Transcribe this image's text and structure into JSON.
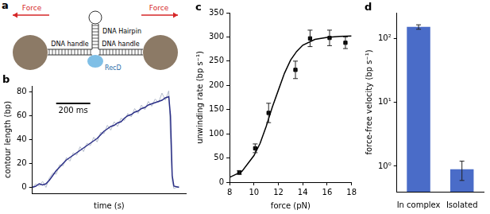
{
  "diagram": {
    "title": "a",
    "force_left": "Force",
    "force_right": "Force",
    "hairpin": "DNA Hairpin",
    "handle_left": "DNA handle",
    "handle_right": "DNA handle",
    "protein": "RecD"
  },
  "chart_data": [
    {
      "title": "b",
      "type": "line",
      "x_label": "time (s)",
      "y_label": "contour length (bp)",
      "x": [
        0,
        0.02,
        0.04,
        0.06,
        0.08,
        0.1,
        0.12,
        0.14,
        0.16,
        0.18,
        0.2,
        0.22,
        0.24,
        0.26,
        0.28,
        0.3,
        0.32,
        0.34,
        0.36,
        0.38,
        0.4,
        0.42,
        0.44,
        0.46,
        0.48,
        0.5,
        0.52,
        0.54,
        0.56,
        0.58,
        0.6,
        0.62,
        0.64,
        0.66,
        0.68,
        0.7,
        0.72,
        0.74,
        0.76,
        0.78,
        0.8,
        0.81,
        0.82,
        0.83,
        0.86
      ],
      "series": [
        {
          "color": "#b4bccb",
          "values": [
            0,
            3,
            1,
            5,
            0,
            8,
            12,
            11,
            19,
            18,
            25,
            22,
            29,
            27,
            34,
            30,
            37,
            35,
            42,
            38,
            46,
            45,
            52,
            48,
            55,
            51,
            58,
            56,
            62,
            59,
            66,
            62,
            69,
            65,
            72,
            68,
            74,
            71,
            79,
            73,
            81,
            40,
            5,
            -1,
            1
          ]
        },
        {
          "color": "#2a2e86",
          "values": [
            0,
            1,
            3,
            2,
            3,
            6,
            10,
            14,
            17,
            20,
            23,
            25,
            27,
            29,
            31,
            33,
            35,
            37,
            39,
            41,
            44,
            47,
            49,
            51,
            52,
            54,
            55,
            58,
            60,
            61,
            63,
            64,
            66,
            67,
            69,
            70,
            71,
            72,
            73,
            75,
            76,
            60,
            10,
            1,
            0
          ]
        }
      ],
      "xlim": [
        0,
        0.9
      ],
      "ylim": [
        -5,
        85
      ],
      "yticks": [
        0,
        20,
        40,
        60,
        80
      ],
      "tick_labels": "y",
      "grid": false,
      "scale_bar": {
        "value": 0.2,
        "label": "200 ms"
      }
    },
    {
      "title": "c",
      "type": "scatter",
      "x_label": "force (pN)",
      "y_label": "unwinding rate (bp s⁻¹)",
      "xlim": [
        8,
        18
      ],
      "xticks": [
        8,
        10,
        12,
        14,
        16,
        18
      ],
      "ylim": [
        0,
        350
      ],
      "yticks": [
        0,
        50,
        100,
        150,
        200,
        250,
        300,
        350
      ],
      "grid": false,
      "series": [
        {
          "type": "scatter",
          "marker": "square",
          "color": "#000000",
          "x": [
            8.8,
            10.1,
            11.2,
            13.4,
            14.6,
            16.2,
            17.5
          ],
          "values": [
            20,
            70,
            143,
            232,
            297,
            298,
            288
          ],
          "errors": [
            4,
            9,
            20,
            18,
            17,
            16,
            12
          ]
        },
        {
          "type": "line",
          "color": "#000000",
          "x": [
            8,
            9,
            10,
            10.5,
            11,
            11.5,
            12,
            12.5,
            13,
            13.5,
            14,
            15,
            16,
            17,
            18
          ],
          "values": [
            10,
            22,
            55,
            80,
            115,
            155,
            190,
            225,
            252,
            270,
            283,
            295,
            299,
            301,
            302
          ]
        }
      ]
    },
    {
      "title": "d",
      "type": "bar",
      "y_label": "force-free velocity (bp s⁻¹)",
      "categories": [
        "In complex",
        "Isolated"
      ],
      "values": [
        150,
        0.9
      ],
      "errors": [
        12,
        0.3
      ],
      "color": "#4a6cc8",
      "log": "y",
      "ylim": [
        0.4,
        250
      ],
      "yticks": [
        {
          "value": 1,
          "label": "10⁰"
        },
        {
          "value": 10,
          "label": "10¹"
        },
        {
          "value": 100,
          "label": "10²"
        }
      ],
      "grid": false
    }
  ]
}
